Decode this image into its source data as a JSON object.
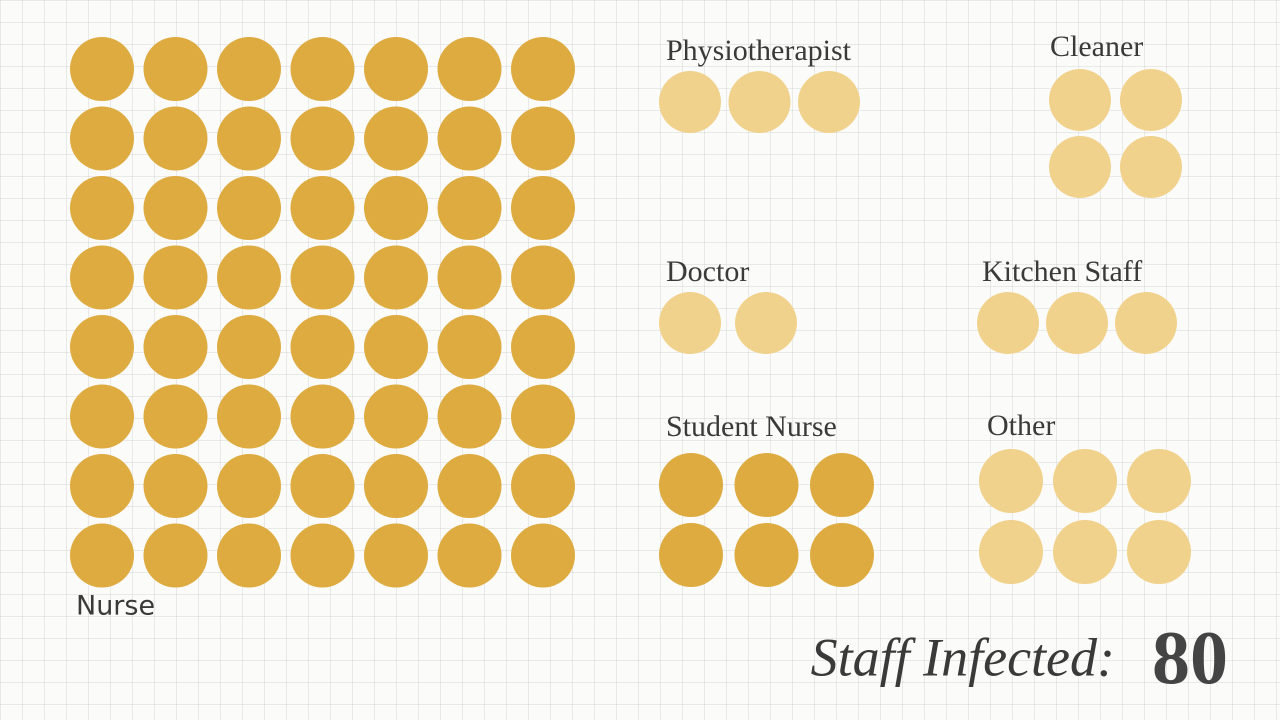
{
  "chart_data": {
    "type": "pictogram",
    "categories": [
      "Nurse",
      "Physiotherapist",
      "Cleaner",
      "Doctor",
      "Kitchen Staff",
      "Student Nurse",
      "Other"
    ],
    "values": [
      56,
      3,
      4,
      2,
      3,
      6,
      6
    ],
    "colors": [
      "#deab40",
      "#f1d28c",
      "#f1d28c",
      "#f1d28c",
      "#f1d28c",
      "#deab40",
      "#f1d28c"
    ],
    "total_label": "Staff Infected:",
    "total": 80
  }
}
